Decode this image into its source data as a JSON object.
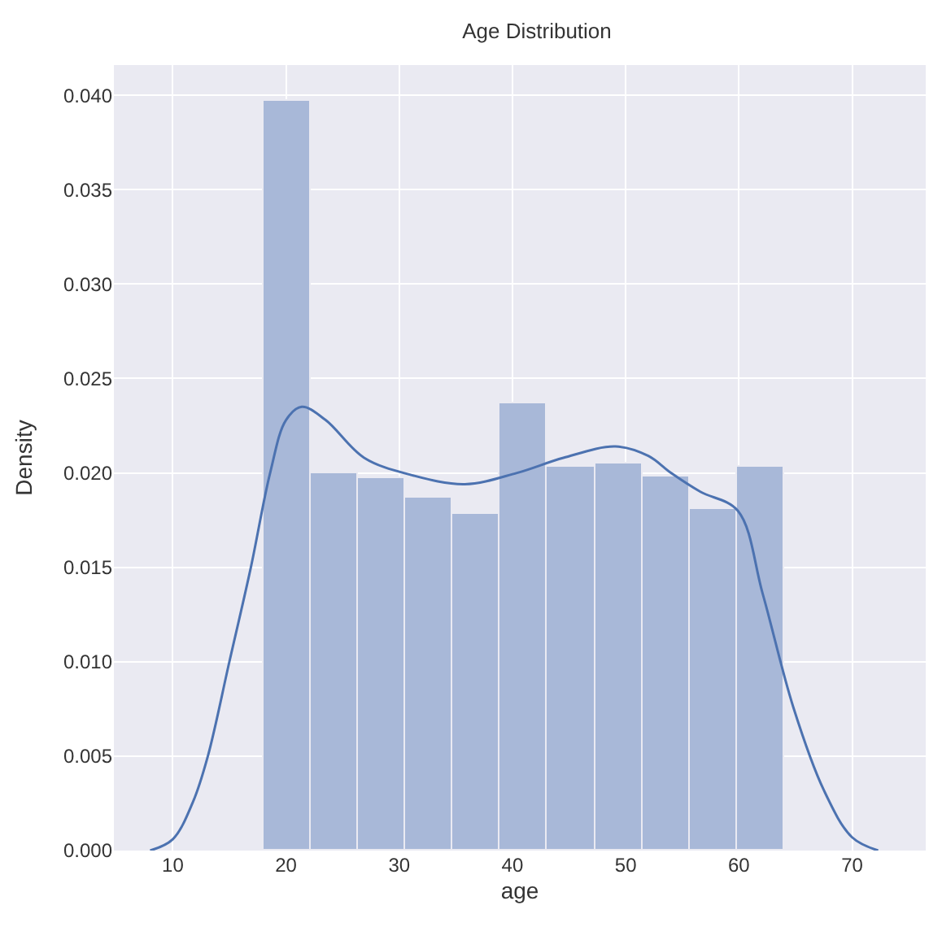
{
  "chart_data": {
    "type": "histogram",
    "title": "Age Distribution",
    "xlabel": "age",
    "ylabel": "Density",
    "bins": [
      18,
      22.18,
      26.36,
      30.55,
      34.73,
      38.91,
      43.09,
      47.27,
      51.45,
      55.64,
      59.82,
      64
    ],
    "values": [
      0.0397,
      0.02,
      0.0197,
      0.0187,
      0.0178,
      0.0237,
      0.0203,
      0.0205,
      0.0198,
      0.0181,
      0.0203
    ],
    "color": "#a8b8d8",
    "series": [
      {
        "type": "line",
        "color": "#4c72b0",
        "x": [
          8,
          10,
          11.8,
          13.1,
          15,
          16.9,
          18.6,
          20,
          21.4,
          23.5,
          26.9,
          31,
          35.8,
          40.4,
          44.5,
          49.1,
          52,
          54,
          56.6,
          59.9,
          62.1,
          64.8,
          67.5,
          70,
          72.3
        ],
        "values": [
          0,
          0.0006,
          0.0026,
          0.005,
          0.01,
          0.015,
          0.02,
          0.0228,
          0.0235,
          0.0228,
          0.0208,
          0.0199,
          0.0194,
          0.02,
          0.0208,
          0.0214,
          0.0209,
          0.02,
          0.019,
          0.018,
          0.0136,
          0.0076,
          0.0032,
          0.0007,
          0
        ]
      }
    ],
    "xlim": [
      4.8,
      76.5
    ],
    "ylim": [
      0,
      0.0416
    ],
    "xticks": [
      10,
      20,
      30,
      40,
      50,
      60,
      70
    ],
    "yticks": [
      {
        "value": 0,
        "label": "0.000"
      },
      {
        "value": 0.005,
        "label": "0.005"
      },
      {
        "value": 0.01,
        "label": "0.010"
      },
      {
        "value": 0.015,
        "label": "0.015"
      },
      {
        "value": 0.02,
        "label": "0.020"
      },
      {
        "value": 0.025,
        "label": "0.025"
      },
      {
        "value": 0.03,
        "label": "0.030"
      },
      {
        "value": 0.035,
        "label": "0.035"
      },
      {
        "value": 0.04,
        "label": "0.040"
      }
    ],
    "grid": true
  }
}
